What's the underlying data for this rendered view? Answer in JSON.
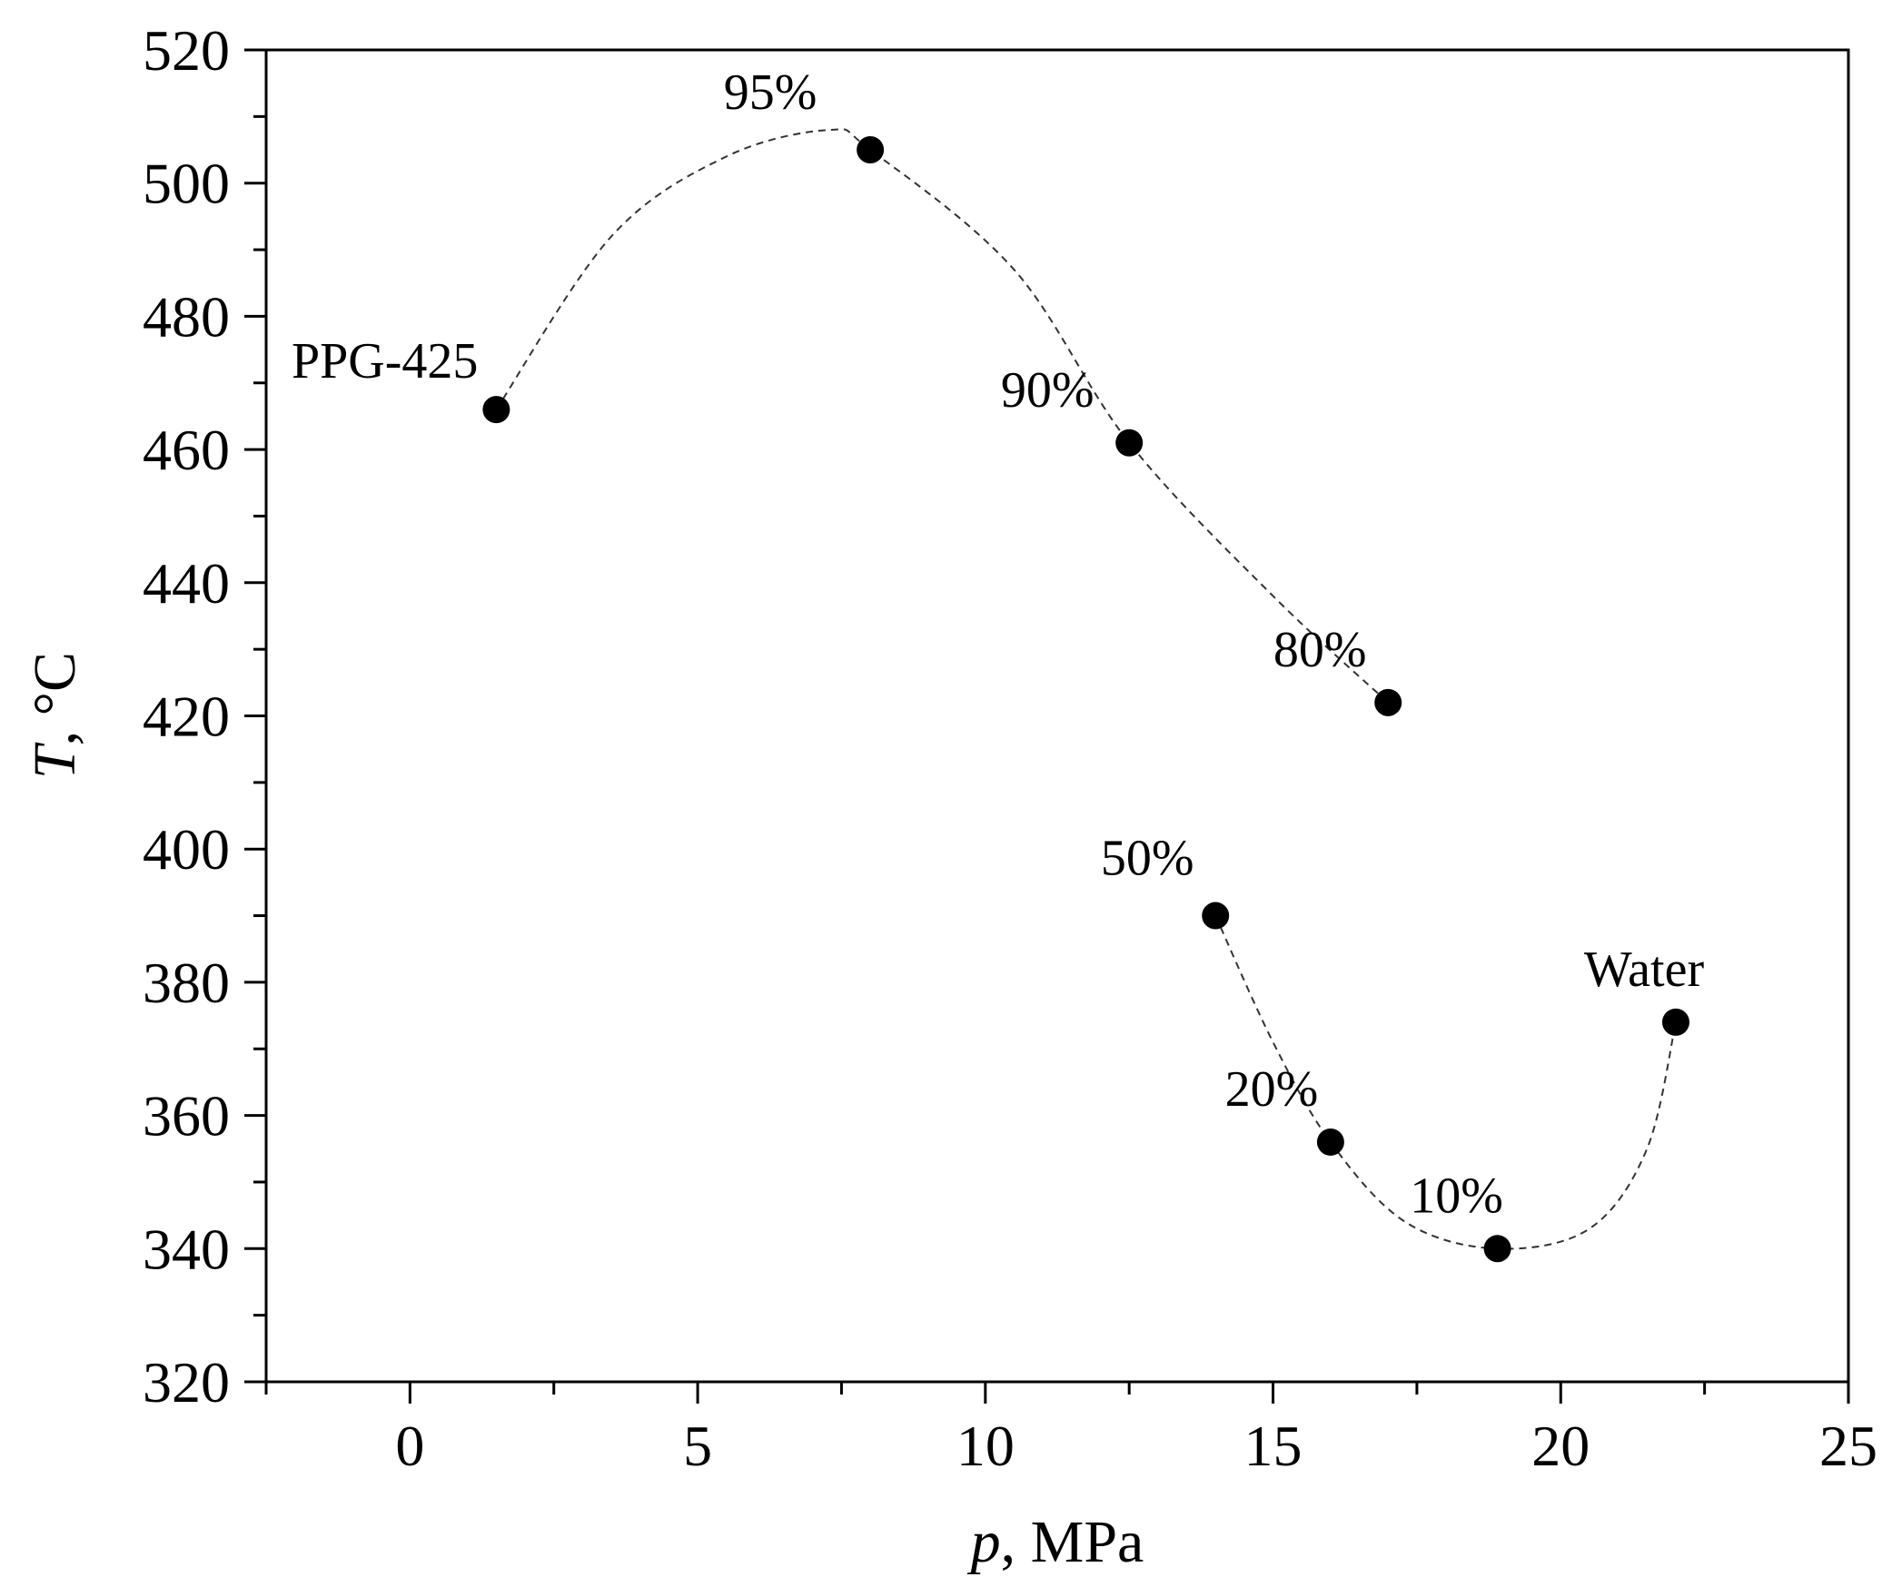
{
  "chart_data": {
    "type": "scatter",
    "title": "",
    "xlabel": {
      "italic": "p",
      "rest": ", MPa"
    },
    "ylabel": {
      "italic": "T",
      "rest": ", °C"
    },
    "xlim": [
      -2.5,
      25
    ],
    "ylim": [
      320,
      520
    ],
    "xticks": [
      0,
      5,
      10,
      15,
      20,
      25
    ],
    "yticks": [
      320,
      340,
      360,
      380,
      400,
      420,
      440,
      460,
      480,
      500,
      520
    ],
    "grid": false,
    "points": [
      {
        "label": "PPG-425",
        "x": 1.5,
        "y": 466
      },
      {
        "label": "95%",
        "x": 8.0,
        "y": 505
      },
      {
        "label": "90%",
        "x": 12.5,
        "y": 461
      },
      {
        "label": "80%",
        "x": 17.0,
        "y": 422
      },
      {
        "label": "50%",
        "x": 14.0,
        "y": 390
      },
      {
        "label": "20%",
        "x": 16.0,
        "y": 356
      },
      {
        "label": "10%",
        "x": 18.9,
        "y": 340
      },
      {
        "label": "Water",
        "x": 22.0,
        "y": 374
      }
    ],
    "dashed_curves": [
      [
        [
          1.5,
          466
        ],
        [
          3.5,
          492
        ],
        [
          5.5,
          504
        ],
        [
          7.3,
          508
        ],
        [
          8.0,
          505
        ],
        [
          10.5,
          487
        ],
        [
          12.5,
          461
        ],
        [
          15.0,
          438
        ],
        [
          17.0,
          422
        ]
      ],
      [
        [
          14.0,
          390
        ],
        [
          15.0,
          371
        ],
        [
          16.0,
          356
        ],
        [
          17.3,
          344
        ],
        [
          18.9,
          340
        ],
        [
          20.5,
          343
        ],
        [
          21.5,
          355
        ],
        [
          22.0,
          374
        ]
      ]
    ]
  }
}
